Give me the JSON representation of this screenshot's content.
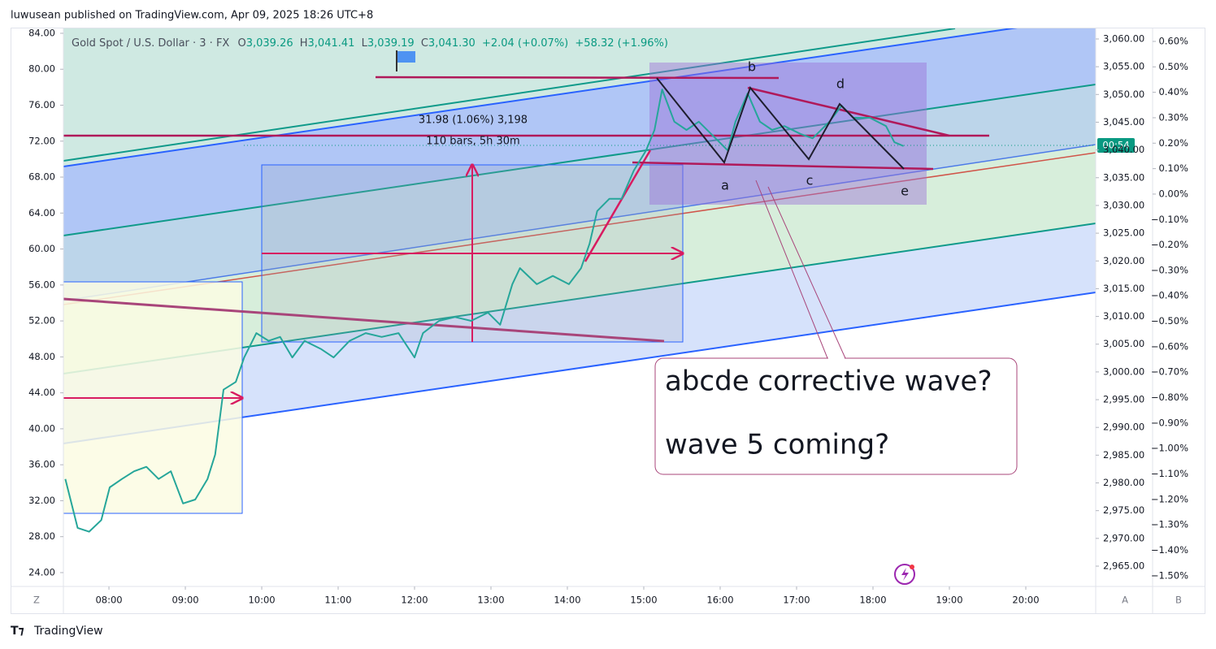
{
  "header": {
    "attribution": "luwusean published on TradingView.com, Apr 09, 2025 18:26 UTC+8"
  },
  "chart_data": {
    "type": "line",
    "title": "Gold Spot / U.S. Dollar · 3 · FX",
    "ohlc": [
      {
        "label": "O",
        "value": "3,039.26"
      },
      {
        "label": "H",
        "value": "3,041.41"
      },
      {
        "label": "L",
        "value": "3,039.19"
      },
      {
        "label": "C",
        "value": "3,041.30"
      }
    ],
    "change": "+2.04 (+0.07%)",
    "change_total": "+58.32 (+1.96%)",
    "color": "#26a69a",
    "x": [
      7.43,
      7.59,
      7.74,
      7.9,
      8.01,
      8.17,
      8.33,
      8.49,
      8.65,
      8.81,
      8.97,
      9.13,
      9.29,
      9.39,
      9.5,
      9.66,
      9.77,
      9.93,
      10.09,
      10.24,
      10.4,
      10.56,
      10.78,
      10.94,
      11.15,
      11.36,
      11.57,
      11.79,
      12.0,
      12.11,
      12.32,
      12.53,
      12.74,
      12.96,
      13.12,
      13.28,
      13.38,
      13.6,
      13.81,
      14.02,
      14.18,
      14.29,
      14.39,
      14.55,
      14.71,
      14.87,
      15.03,
      15.14,
      15.24,
      15.4,
      15.56,
      15.72,
      15.94,
      16.1,
      16.2,
      16.36,
      16.52,
      16.68,
      16.84,
      17.05,
      17.21,
      17.43,
      17.59,
      17.74,
      17.96,
      18.17,
      18.28,
      18.4
    ],
    "values": [
      2980.7,
      2971.9,
      2971.2,
      2973.3,
      2979.2,
      2980.7,
      2982.1,
      2982.9,
      2980.7,
      2982.1,
      2976.3,
      2977.0,
      2980.7,
      2985.1,
      2996.8,
      2998.2,
      3002.6,
      3007.0,
      3005.6,
      3006.3,
      3002.6,
      3005.6,
      3004.1,
      3002.6,
      3005.6,
      3007.0,
      3006.3,
      3007.0,
      3002.6,
      3007.0,
      3009.2,
      3009.9,
      3009.2,
      3010.7,
      3008.5,
      3015.8,
      3018.7,
      3015.8,
      3017.3,
      3015.8,
      3018.7,
      3023.1,
      3029.0,
      3031.2,
      3031.2,
      3036.3,
      3039.9,
      3043.6,
      3050.9,
      3045.1,
      3043.6,
      3045.1,
      3042.1,
      3039.9,
      3045.1,
      3050.2,
      3045.1,
      3043.6,
      3044.3,
      3042.9,
      3042.1,
      3045.1,
      3048.0,
      3045.8,
      3045.8,
      3044.3,
      3041.4,
      3040.7
    ],
    "xlim": [
      7.404,
      20.915
    ],
    "xticks": [
      {
        "value": 8,
        "label": "08:00"
      },
      {
        "value": 9,
        "label": "09:00"
      },
      {
        "value": 10,
        "label": "10:00"
      },
      {
        "value": 11,
        "label": "11:00"
      },
      {
        "value": 12,
        "label": "12:00"
      },
      {
        "value": 13,
        "label": "13:00"
      },
      {
        "value": 14,
        "label": "14:00"
      },
      {
        "value": 15,
        "label": "15:00"
      },
      {
        "value": 16,
        "label": "16:00"
      },
      {
        "value": 17,
        "label": "17:00"
      },
      {
        "value": 18,
        "label": "18:00"
      },
      {
        "value": 19,
        "label": "19:00"
      },
      {
        "value": 20,
        "label": "20:00"
      }
    ],
    "ylim": [
      2961.34,
      3061.9
    ],
    "yticks": [
      {
        "value": 3060,
        "label": "3,060.00"
      },
      {
        "value": 3055,
        "label": "3,055.00"
      },
      {
        "value": 3050,
        "label": "3,050.00"
      },
      {
        "value": 3045,
        "label": "3,045.00"
      },
      {
        "value": 3040,
        "label": "3,040.00"
      },
      {
        "value": 3035,
        "label": "3,035.00"
      },
      {
        "value": 3030,
        "label": "3,030.00"
      },
      {
        "value": 3025,
        "label": "3,025.00"
      },
      {
        "value": 3020,
        "label": "3,020.00"
      },
      {
        "value": 3015,
        "label": "3,015.00"
      },
      {
        "value": 3010,
        "label": "3,010.00"
      },
      {
        "value": 3005,
        "label": "3,005.00"
      },
      {
        "value": 3000,
        "label": "3,000.00"
      },
      {
        "value": 2995,
        "label": "2,995.00"
      },
      {
        "value": 2990,
        "label": "2,990.00"
      },
      {
        "value": 2985,
        "label": "2,985.00"
      },
      {
        "value": 2980,
        "label": "2,980.00"
      },
      {
        "value": 2975,
        "label": "2,975.00"
      },
      {
        "value": 2970,
        "label": "2,970.00"
      },
      {
        "value": 2965,
        "label": "2,965.00"
      }
    ],
    "left_axis": {
      "lim": [
        22.46,
        84.54
      ],
      "ticks": [
        {
          "value": 84,
          "label": "84.00"
        },
        {
          "value": 80,
          "label": "80.00"
        },
        {
          "value": 76,
          "label": "76.00"
        },
        {
          "value": 72,
          "label": "72.00"
        },
        {
          "value": 68,
          "label": "68.00"
        },
        {
          "value": 64,
          "label": "64.00"
        },
        {
          "value": 60,
          "label": "60.00"
        },
        {
          "value": 56,
          "label": "56.00"
        },
        {
          "value": 52,
          "label": "52.00"
        },
        {
          "value": 48,
          "label": "48.00"
        },
        {
          "value": 44,
          "label": "44.00"
        },
        {
          "value": 40,
          "label": "40.00"
        },
        {
          "value": 36,
          "label": "36.00"
        },
        {
          "value": 32,
          "label": "32.00"
        },
        {
          "value": 28,
          "label": "28.00"
        },
        {
          "value": 24,
          "label": "24.00"
        }
      ]
    },
    "pct_axis": {
      "lim": [
        -1.542,
        0.651
      ],
      "ticks": [
        {
          "value": 0.6,
          "label": "0.60%"
        },
        {
          "value": 0.5,
          "label": "0.50%"
        },
        {
          "value": 0.4,
          "label": "0.40%"
        },
        {
          "value": 0.3,
          "label": "0.30%"
        },
        {
          "value": 0.2,
          "label": "0.20%"
        },
        {
          "value": 0.1,
          "label": "0.10%"
        },
        {
          "value": 0,
          "label": "0.00%"
        },
        {
          "value": -0.1,
          "label": "−0.10%"
        },
        {
          "value": -0.2,
          "label": "−0.20%"
        },
        {
          "value": -0.3,
          "label": "−0.30%"
        },
        {
          "value": -0.4,
          "label": "−0.40%"
        },
        {
          "value": -0.5,
          "label": "−0.50%"
        },
        {
          "value": -0.6,
          "label": "−0.60%"
        },
        {
          "value": -0.7,
          "label": "−0.70%"
        },
        {
          "value": -0.8,
          "label": "−0.80%"
        },
        {
          "value": -0.9,
          "label": "−0.90%"
        },
        {
          "value": -1.0,
          "label": "−1.00%"
        },
        {
          "value": -1.1,
          "label": "−1.10%"
        },
        {
          "value": -1.2,
          "label": "−1.20%"
        },
        {
          "value": -1.3,
          "label": "−1.30%"
        },
        {
          "value": -1.4,
          "label": "−1.40%"
        },
        {
          "value": -1.5,
          "label": "−1.50%"
        }
      ]
    },
    "annotations": {
      "measure": "31.98 (1.06%) 3,198",
      "bars": "110 bars, 5h 30m",
      "waves": [
        "a",
        "b",
        "c",
        "d",
        "e"
      ],
      "callout": [
        "abcde corrective wave?",
        "wave 5 coming?"
      ]
    },
    "countdown": "00:54"
  },
  "ui": {
    "axis_buttons": [
      "Z",
      "A",
      "B"
    ],
    "logo": "TradingView"
  }
}
